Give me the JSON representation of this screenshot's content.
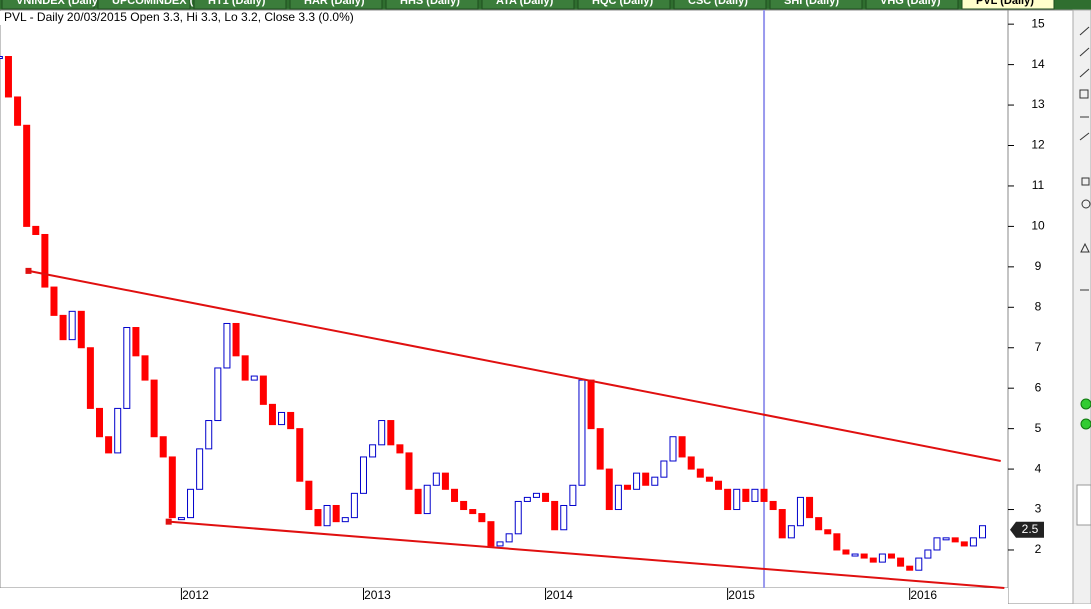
{
  "tabs": [
    "VNINDEX (Daily)",
    "UPCOMINDEX (Daily)",
    "HT1 (Daily)",
    "HAR (Daily)",
    "HHS (Daily)",
    "ATA (Daily)",
    "HQC (Daily)",
    "CSC (Daily)",
    "SHI (Daily)",
    "VHG (Daily)",
    "PVL (Daily)"
  ],
  "chart_data": {
    "type": "candle",
    "title": "PVL - Daily 20/03/2015 Open 3.3, Hi 3.3, Lo 3.2, Close 3.3 (0.0%)",
    "up_color": "#0000cc",
    "down_color": "#ff0000",
    "x": [
      2011,
      2011.05,
      2011.1,
      2011.15,
      2011.2,
      2011.25,
      2011.3,
      2011.35,
      2011.4,
      2011.45,
      2011.5,
      2011.55,
      2011.6,
      2011.65,
      2011.7,
      2011.75,
      2011.8,
      2011.85,
      2011.9,
      2011.95,
      2012,
      2012.05,
      2012.1,
      2012.15,
      2012.2,
      2012.25,
      2012.3,
      2012.35,
      2012.4,
      2012.45,
      2012.5,
      2012.55,
      2012.6,
      2012.65,
      2012.7,
      2012.75,
      2012.8,
      2012.85,
      2012.9,
      2012.95,
      2013,
      2013.05,
      2013.1,
      2013.15,
      2013.2,
      2013.25,
      2013.3,
      2013.35,
      2013.4,
      2013.45,
      2013.5,
      2013.55,
      2013.6,
      2013.65,
      2013.7,
      2013.75,
      2013.8,
      2013.85,
      2013.9,
      2013.95,
      2014,
      2014.05,
      2014.1,
      2014.15,
      2014.2,
      2014.25,
      2014.3,
      2014.35,
      2014.4,
      2014.45,
      2014.5,
      2014.55,
      2014.6,
      2014.65,
      2014.7,
      2014.75,
      2014.8,
      2014.85,
      2014.9,
      2014.95,
      2015,
      2015.05,
      2015.1,
      2015.15,
      2015.2,
      2015.25,
      2015.3,
      2015.35,
      2015.4,
      2015.45,
      2015.5,
      2015.55,
      2015.6,
      2015.65,
      2015.7,
      2015.75,
      2015.8,
      2015.85,
      2015.9,
      2015.95,
      2016,
      2016.05,
      2016.1,
      2016.15,
      2016.2,
      2016.25,
      2016.3,
      2016.35,
      2016.4
    ],
    "values": [
      14.2,
      13.2,
      12.5,
      10,
      9.8,
      8.5,
      7.8,
      7.2,
      7.9,
      7.0,
      5.5,
      4.8,
      4.4,
      5.5,
      7.5,
      6.8,
      6.2,
      4.8,
      4.3,
      2.8,
      2.8,
      3.5,
      4.5,
      5.2,
      6.5,
      7.6,
      6.8,
      6.2,
      6.3,
      5.6,
      5.1,
      5.4,
      5.0,
      3.7,
      3.0,
      2.6,
      3.1,
      2.7,
      2.8,
      3.4,
      4.3,
      4.6,
      5.2,
      4.6,
      4.4,
      3.5,
      2.9,
      3.6,
      3.9,
      3.5,
      3.2,
      3.0,
      2.9,
      2.7,
      2.1,
      2.2,
      2.4,
      3.2,
      3.3,
      3.4,
      3.2,
      2.5,
      3.1,
      3.6,
      6.2,
      5.0,
      4.0,
      3.0,
      3.6,
      3.5,
      3.9,
      3.6,
      3.8,
      4.2,
      4.8,
      4.3,
      4.0,
      3.8,
      3.7,
      3.5,
      3.0,
      3.5,
      3.2,
      3.5,
      3.2,
      3.0,
      2.3,
      2.6,
      3.3,
      2.8,
      2.5,
      2.4,
      2.0,
      1.9,
      1.9,
      1.8,
      1.7,
      1.9,
      1.8,
      1.6,
      1.5,
      1.8,
      2.0,
      2.3,
      2.3,
      2.2,
      2.1,
      2.3,
      2.6
    ],
    "xlim": [
      2011.02,
      2016.54
    ],
    "xticks": [
      2012,
      2013,
      2014,
      2015,
      2016
    ],
    "ylim": [
      1.06,
      15.35
    ],
    "yticks": [
      2,
      3,
      4,
      5,
      6,
      7,
      8,
      9,
      10,
      11,
      12,
      13,
      14,
      15
    ],
    "trendlines": [
      {
        "x": [
          2011.16,
          2016.5
        ],
        "y": [
          8.9,
          4.2
        ],
        "color": "#e01010"
      },
      {
        "x": [
          2011.93,
          2016.52
        ],
        "y": [
          2.7,
          1.06
        ],
        "color": "#e01010"
      }
    ],
    "cursor_x": 2015.2,
    "cursor_color": "#9999ee",
    "last_price": {
      "value": 2.5,
      "label": "2.5"
    }
  }
}
